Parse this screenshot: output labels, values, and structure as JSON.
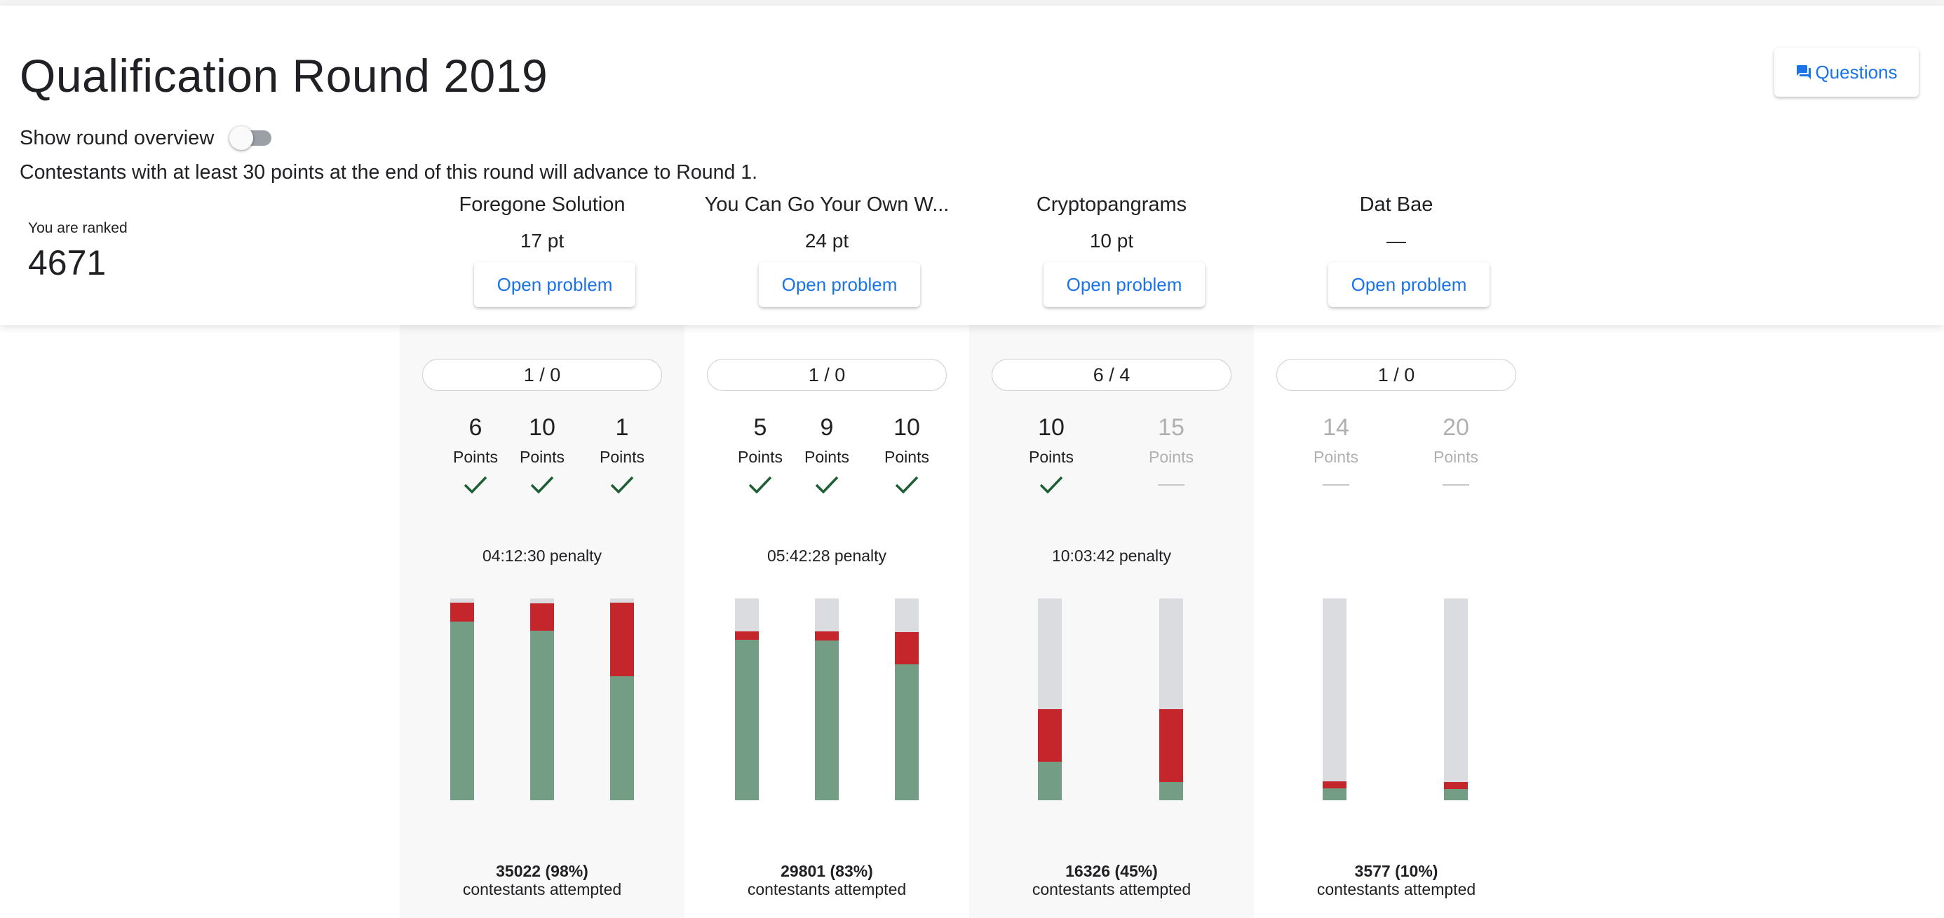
{
  "round": {
    "title": "Qualification Round 2019",
    "show_overview_label": "Show round overview",
    "show_overview_on": false,
    "advance_text": "Contestants with at least 30 points at the end of this round will advance to Round 1."
  },
  "header": {
    "questions_label": "Questions"
  },
  "rank": {
    "label": "You are ranked",
    "value": "4671"
  },
  "colors": {
    "solved": "#749d86",
    "wrong": "#c5262b",
    "untried": "#dadce0",
    "accent": "#1a73e8",
    "check": "#1e5e34"
  },
  "problems": [
    {
      "name": "Foregone Solution",
      "score": "17 pt",
      "open_label": "Open problem",
      "attempts": "1 / 0",
      "tests": [
        {
          "points": "6",
          "label": "Points",
          "status": "check-icon"
        },
        {
          "points": "10",
          "label": "Points",
          "status": "check-icon"
        },
        {
          "points": "1",
          "label": "Points",
          "status": "check-icon"
        }
      ],
      "penalty": "04:12:30 penalty",
      "bar_fractions": [
        {
          "solved": 0.885,
          "wrong": 0.095
        },
        {
          "solved": 0.84,
          "wrong": 0.135
        },
        {
          "solved": 0.615,
          "wrong": 0.365
        }
      ],
      "attempted_count": "35022 (98%)",
      "attempted_text": "contestants attempted"
    },
    {
      "name": "You Can Go Your Own W...",
      "score": "24 pt",
      "open_label": "Open problem",
      "attempts": "1 / 0",
      "tests": [
        {
          "points": "5",
          "label": "Points",
          "status": "check-icon"
        },
        {
          "points": "9",
          "label": "Points",
          "status": "check-icon"
        },
        {
          "points": "10",
          "label": "Points",
          "status": "check-icon"
        }
      ],
      "penalty": "05:42:28 penalty",
      "bar_fractions": [
        {
          "solved": 0.795,
          "wrong": 0.04
        },
        {
          "solved": 0.79,
          "wrong": 0.045
        },
        {
          "solved": 0.675,
          "wrong": 0.16
        }
      ],
      "attempted_count": "29801 (83%)",
      "attempted_text": "contestants attempted"
    },
    {
      "name": "Cryptopangrams",
      "score": "10 pt",
      "open_label": "Open problem",
      "attempts": "6 / 4",
      "tests": [
        {
          "points": "10",
          "label": "Points",
          "status": "check-icon"
        },
        {
          "points": "15",
          "label": "Points",
          "status": "dash-icon"
        }
      ],
      "penalty": "10:03:42 penalty",
      "bar_fractions": [
        {
          "solved": 0.19,
          "wrong": 0.26
        },
        {
          "solved": 0.09,
          "wrong": 0.36
        }
      ],
      "attempted_count": "16326 (45%)",
      "attempted_text": "contestants attempted"
    },
    {
      "name": "Dat Bae",
      "score": "—",
      "open_label": "Open problem",
      "attempts": "1 / 0",
      "tests": [
        {
          "points": "14",
          "label": "Points",
          "status": "dash-icon"
        },
        {
          "points": "20",
          "label": "Points",
          "status": "dash-icon"
        }
      ],
      "penalty": "",
      "bar_fractions": [
        {
          "solved": 0.06,
          "wrong": 0.035
        },
        {
          "solved": 0.055,
          "wrong": 0.035
        }
      ],
      "attempted_count": "3577 (10%)",
      "attempted_text": "contestants attempted"
    }
  ]
}
